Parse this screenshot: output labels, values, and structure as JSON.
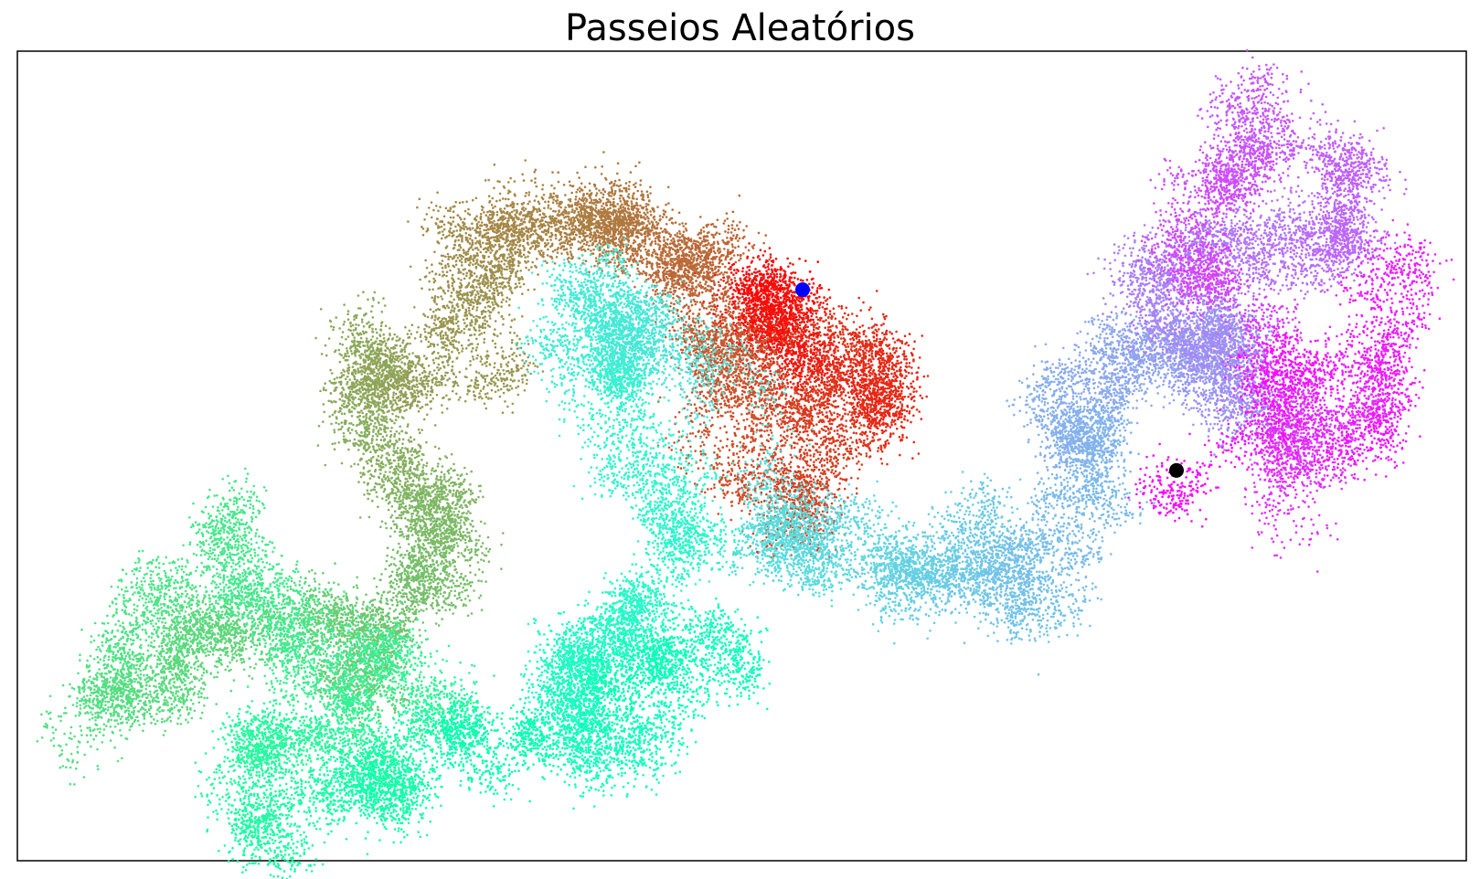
{
  "chart_data": {
    "type": "scatter",
    "title": "Passeios Aleatórios",
    "xlabel": "",
    "ylabel": "",
    "axes_visible": false,
    "grid": false,
    "colormap": "rainbow",
    "color_order": "first points red, last points violet",
    "start_point": {
      "x": 0,
      "y": 0,
      "color": "#0000ff"
    },
    "end_point": {
      "x": 200,
      "y": -100,
      "color": "#000000"
    },
    "xlim": [
      -420,
      355
    ],
    "ylim": [
      -316,
      132
    ],
    "num_points": 50000,
    "path_waypoints": [
      [
        0,
        0
      ],
      [
        -15,
        -10
      ],
      [
        -20,
        -5
      ],
      [
        -5,
        -40
      ],
      [
        35,
        -50
      ],
      [
        45,
        -60
      ],
      [
        20,
        -40
      ],
      [
        0,
        -60
      ],
      [
        -10,
        -105
      ],
      [
        -25,
        -120
      ],
      [
        -35,
        -85
      ],
      [
        -45,
        -35
      ],
      [
        -55,
        -10
      ],
      [
        -75,
        10
      ],
      [
        -85,
        25
      ],
      [
        -100,
        30
      ],
      [
        -120,
        35
      ],
      [
        -145,
        30
      ],
      [
        -170,
        20
      ],
      [
        -160,
        -15
      ],
      [
        -190,
        -40
      ],
      [
        -225,
        -50
      ],
      [
        -240,
        -30
      ],
      [
        -230,
        -95
      ],
      [
        -205,
        -120
      ],
      [
        -180,
        -120
      ],
      [
        -205,
        -160
      ],
      [
        -220,
        -195
      ],
      [
        -240,
        -210
      ],
      [
        -265,
        -190
      ],
      [
        -300,
        -175
      ],
      [
        -325,
        -210
      ],
      [
        -350,
        -225
      ],
      [
        -385,
        -230
      ],
      [
        -345,
        -170
      ],
      [
        -310,
        -135
      ],
      [
        -285,
        -180
      ],
      [
        -260,
        -210
      ],
      [
        -225,
        -200
      ],
      [
        -195,
        -230
      ],
      [
        -245,
        -250
      ],
      [
        -280,
        -240
      ],
      [
        -300,
        -275
      ],
      [
        -260,
        -300
      ],
      [
        -215,
        -285
      ],
      [
        -235,
        -255
      ],
      [
        -180,
        -255
      ],
      [
        -150,
        -245
      ],
      [
        -110,
        -230
      ],
      [
        -95,
        -210
      ],
      [
        -50,
        -190
      ],
      [
        -70,
        -230
      ],
      [
        -120,
        -255
      ],
      [
        -130,
        -205
      ],
      [
        -110,
        -180
      ],
      [
        -80,
        -160
      ],
      [
        -70,
        -110
      ],
      [
        -100,
        -90
      ],
      [
        -85,
        -50
      ],
      [
        -120,
        -30
      ],
      [
        -125,
        5
      ],
      [
        -85,
        -25
      ],
      [
        -60,
        -30
      ],
      [
        -20,
        -130
      ],
      [
        -5,
        -145
      ],
      [
        15,
        -140
      ],
      [
        50,
        -160
      ],
      [
        75,
        -150
      ],
      [
        95,
        -145
      ],
      [
        110,
        -160
      ],
      [
        130,
        -150
      ],
      [
        150,
        -120
      ],
      [
        160,
        -80
      ],
      [
        140,
        -60
      ],
      [
        170,
        -50
      ],
      [
        185,
        -30
      ],
      [
        210,
        -40
      ],
      [
        230,
        -15
      ],
      [
        250,
        -60
      ],
      [
        200,
        -25
      ],
      [
        180,
        0
      ],
      [
        230,
        20
      ],
      [
        260,
        30
      ],
      [
        305,
        30
      ],
      [
        290,
        70
      ],
      [
        250,
        100
      ],
      [
        225,
        70
      ],
      [
        195,
        40
      ],
      [
        235,
        -15
      ],
      [
        270,
        -80
      ],
      [
        250,
        -115
      ],
      [
        300,
        -65
      ],
      [
        320,
        5
      ],
      [
        305,
        -60
      ],
      [
        260,
        -60
      ],
      [
        200,
        -100
      ]
    ]
  }
}
